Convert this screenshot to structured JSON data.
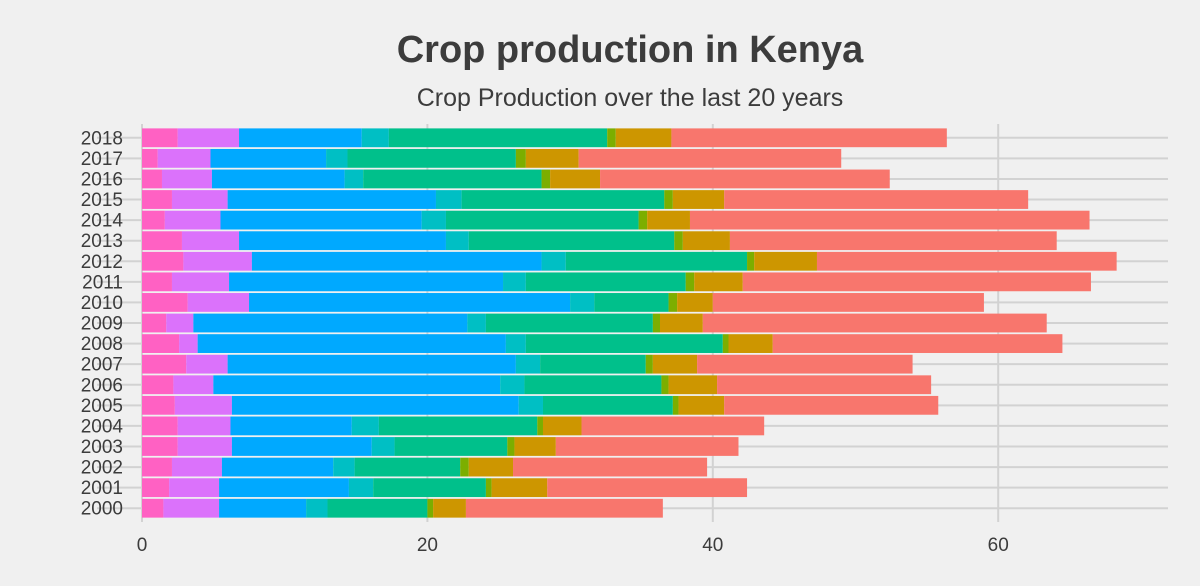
{
  "chart_data": {
    "type": "bar",
    "orientation": "horizontal",
    "stacked": true,
    "title": "Crop production in Kenya",
    "subtitle": "Crop Production over the last 20 years",
    "xlabel": "",
    "ylabel": "",
    "xlim": [
      0,
      72
    ],
    "xticks": [
      0,
      20,
      40,
      60
    ],
    "grid": true,
    "legend": "none",
    "categories": [
      "2000",
      "2001",
      "2002",
      "2003",
      "2004",
      "2005",
      "2006",
      "2007",
      "2008",
      "2009",
      "2010",
      "2011",
      "2012",
      "2013",
      "2014",
      "2015",
      "2016",
      "2017",
      "2018"
    ],
    "series": [
      {
        "color": "#ff61c3",
        "values": [
          1.5,
          1.9,
          2.1,
          2.5,
          2.5,
          2.3,
          2.2,
          3.1,
          2.6,
          1.7,
          3.2,
          2.1,
          2.9,
          2.8,
          1.6,
          2.1,
          1.4,
          1.1,
          2.5
        ]
      },
      {
        "color": "#db72fb",
        "values": [
          3.9,
          3.5,
          3.5,
          3.8,
          3.7,
          4.0,
          2.8,
          2.9,
          1.3,
          1.9,
          4.3,
          4.0,
          4.8,
          4.0,
          3.9,
          3.9,
          3.5,
          3.7,
          4.3
        ]
      },
      {
        "color": "#00a9ff",
        "values": [
          6.1,
          9.1,
          7.8,
          9.8,
          8.5,
          20.1,
          20.1,
          20.2,
          21.6,
          19.2,
          22.5,
          19.2,
          20.3,
          14.5,
          14.1,
          14.6,
          9.3,
          8.1,
          8.6
        ]
      },
      {
        "color": "#00bfc4",
        "values": [
          1.5,
          1.7,
          1.5,
          1.6,
          1.9,
          1.7,
          1.7,
          1.7,
          1.4,
          1.3,
          1.7,
          1.6,
          1.7,
          1.6,
          1.7,
          1.8,
          1.3,
          1.5,
          1.9
        ]
      },
      {
        "color": "#00c08b",
        "values": [
          7.0,
          7.9,
          7.4,
          7.9,
          11.1,
          9.1,
          9.6,
          7.4,
          13.8,
          11.7,
          5.2,
          11.2,
          12.7,
          14.4,
          13.5,
          14.2,
          12.5,
          11.8,
          15.3
        ]
      },
      {
        "color": "#7cae00",
        "values": [
          0.4,
          0.4,
          0.6,
          0.5,
          0.4,
          0.4,
          0.5,
          0.5,
          0.4,
          0.5,
          0.6,
          0.6,
          0.5,
          0.6,
          0.6,
          0.6,
          0.6,
          0.7,
          0.6
        ]
      },
      {
        "color": "#cd9600",
        "values": [
          2.3,
          3.9,
          3.1,
          2.9,
          2.7,
          3.2,
          3.4,
          3.1,
          3.1,
          3.0,
          2.5,
          3.4,
          4.4,
          3.3,
          3.0,
          3.6,
          3.5,
          3.7,
          3.9
        ]
      },
      {
        "color": "#f8766d",
        "values": [
          13.8,
          14.0,
          13.6,
          12.8,
          12.8,
          15.0,
          15.0,
          15.1,
          20.3,
          24.1,
          19.0,
          24.4,
          21.0,
          22.9,
          28.0,
          21.3,
          20.3,
          18.4,
          19.3
        ]
      }
    ]
  }
}
